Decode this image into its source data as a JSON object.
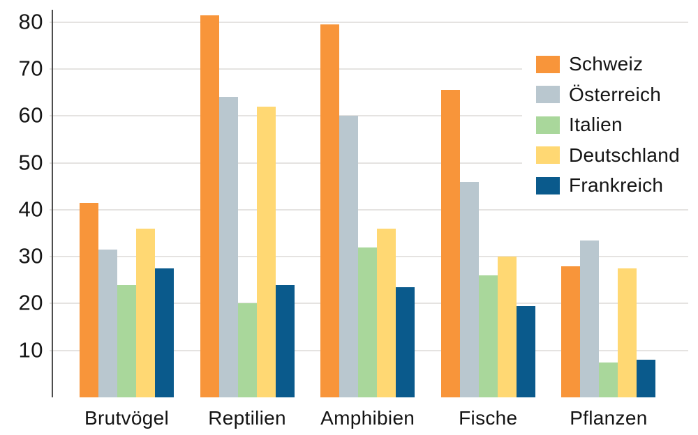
{
  "chart_data": {
    "type": "bar",
    "title": "",
    "xlabel": "",
    "ylabel": "",
    "categories": [
      "Brutvögel",
      "Reptilien",
      "Amphibien",
      "Fische",
      "Pflanzen"
    ],
    "series": [
      {
        "name": "Schweiz",
        "color": "#F8953A",
        "values": [
          41.5,
          81.5,
          79.5,
          65.5,
          28
        ]
      },
      {
        "name": "Österreich",
        "color": "#B9C7CF",
        "values": [
          31.5,
          64,
          60,
          46,
          33.5
        ]
      },
      {
        "name": "Italien",
        "color": "#A9D79B",
        "values": [
          24,
          20,
          32,
          26,
          7.5
        ]
      },
      {
        "name": "Deutschland",
        "color": "#FFD873",
        "values": [
          36,
          62,
          36,
          30,
          27.5
        ]
      },
      {
        "name": "Frankreich",
        "color": "#0A5A8C",
        "values": [
          27.5,
          24,
          23.5,
          19.5,
          8
        ]
      }
    ],
    "yticks": [
      10,
      20,
      30,
      40,
      50,
      60,
      70,
      80
    ],
    "ylim": [
      0,
      83
    ],
    "grid": true,
    "legend_position": "top-right"
  },
  "colors": {
    "background": "#ffffff",
    "gridline": "#e5e3e1",
    "axis_line": "#4d4d4d",
    "text": "#141414"
  }
}
